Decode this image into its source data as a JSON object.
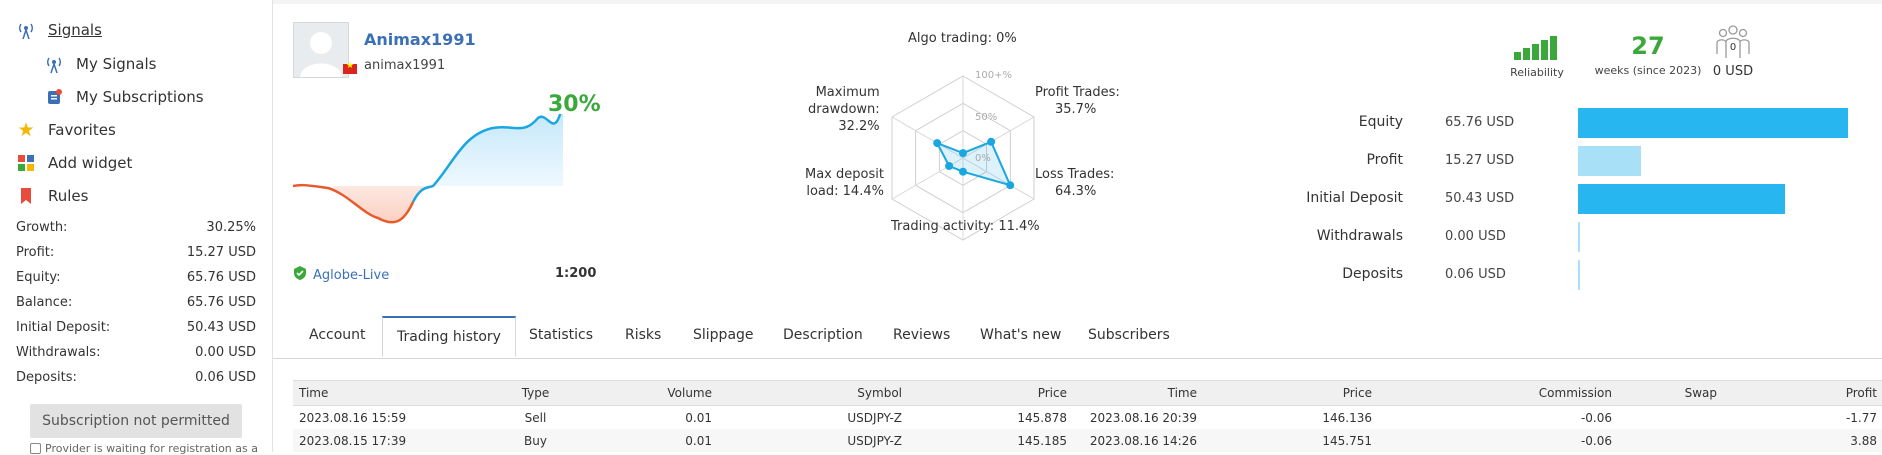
{
  "sidebar": {
    "header": "Signals",
    "items": [
      {
        "label": "My Signals",
        "icon": "signal-antenna-icon"
      },
      {
        "label": "My Subscriptions",
        "icon": "subscription-icon"
      },
      {
        "label": "Favorites",
        "icon": "star-icon"
      },
      {
        "label": "Add widget",
        "icon": "widget-icon"
      },
      {
        "label": "Rules",
        "icon": "bookmark-icon"
      }
    ],
    "stats": [
      {
        "label": "Growth:",
        "value": "30.25%"
      },
      {
        "label": "Profit:",
        "value": "15.27 USD"
      },
      {
        "label": "Equity:",
        "value": "65.76 USD"
      },
      {
        "label": "Balance:",
        "value": "65.76 USD"
      },
      {
        "label": "Initial Deposit:",
        "value": "50.43 USD"
      },
      {
        "label": "Withdrawals:",
        "value": "0.00 USD"
      },
      {
        "label": "Deposits:",
        "value": "0.06 USD"
      }
    ],
    "subscribe_button": "Subscription not permitted",
    "provider_note": "Provider is waiting for registration as a"
  },
  "profile": {
    "name": "Animax1991",
    "login": "animax1991",
    "growth": "30%",
    "broker": "Aglobe-Live",
    "leverage": "1:200"
  },
  "radar": {
    "labels": {
      "algo": "Algo trading: 0%",
      "profit_trades_l": "Profit Trades:",
      "profit_trades_v": "35.7%",
      "loss_trades_l": "Loss Trades:",
      "loss_trades_v": "64.3%",
      "activity": "Trading activity: 11.4%",
      "deposit_load_l": "Max deposit",
      "deposit_load_v": "load: 14.4%",
      "drawdown_l": "Maximum",
      "drawdown_m": "drawdown:",
      "drawdown_v": "32.2%"
    },
    "scale": {
      "top": "100+%",
      "mid": "50%",
      "low": "0%"
    },
    "values": {
      "algo": 0.0,
      "profit": 0.357,
      "loss": 0.643,
      "activity": 0.114,
      "deposit_load": 0.144,
      "drawdown": 0.322
    },
    "color": "#1aa7e0"
  },
  "summary": {
    "reliability_label": "Reliability",
    "weeks_value": "27",
    "weeks_label": "weeks (since 2023)",
    "subscribers_count": "0",
    "subscribers_money": "0 USD"
  },
  "balance_bars": [
    {
      "label": "Equity",
      "value": "65.76 USD",
      "fraction": 1.0,
      "color": "#27b6ef"
    },
    {
      "label": "Profit",
      "value": "15.27 USD",
      "fraction": 0.232,
      "color": "#a8e1f7"
    },
    {
      "label": "Initial Deposit",
      "value": "50.43 USD",
      "fraction": 0.767,
      "color": "#27b6ef"
    },
    {
      "label": "Withdrawals",
      "value": "0.00 USD",
      "fraction": 0.0,
      "color": "#a8e1f7"
    },
    {
      "label": "Deposits",
      "value": "0.06 USD",
      "fraction": 0.001,
      "color": "#a8e1f7"
    }
  ],
  "tabs": [
    "Account",
    "Trading history",
    "Statistics",
    "Risks",
    "Slippage",
    "Description",
    "Reviews",
    "What's new",
    "Subscribers"
  ],
  "trades": {
    "headers": [
      "Time",
      "Type",
      "Volume",
      "Symbol",
      "Price",
      "Time",
      "Price",
      "Commission",
      "Swap",
      "Profit"
    ],
    "rows": [
      [
        "2023.08.16 15:59",
        "Sell",
        "0.01",
        "USDJPY-Z",
        "145.878",
        "2023.08.16 20:39",
        "146.136",
        "-0.06",
        "",
        "-1.77"
      ],
      [
        "2023.08.15 17:39",
        "Buy",
        "0.01",
        "USDJPY-Z",
        "145.185",
        "2023.08.16 14:26",
        "145.751",
        "-0.06",
        "",
        "3.88"
      ]
    ]
  },
  "colors": {
    "accent": "#3b6fb6",
    "growth": "#3aa83a",
    "loss": "#c0392b",
    "equity_line": "#1aa7e0",
    "drawdown_line": "#e85a2b"
  }
}
